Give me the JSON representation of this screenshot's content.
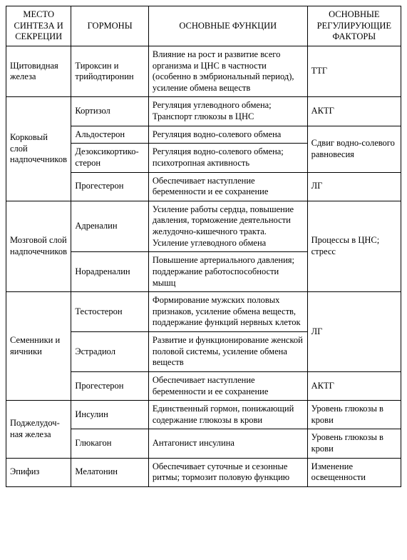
{
  "headers": {
    "c1": "МЕСТО СИНТЕЗА И СЕКРЕЦИИ",
    "c2": "ГОРМОНЫ",
    "c3": "ОСНОВНЫЕ ФУНКЦИИ",
    "c4": "ОСНОВНЫЕ РЕГУЛИРУЮЩИЕ ФАКТОРЫ"
  },
  "groups": [
    {
      "site": "Щитовидная железа",
      "rows": [
        {
          "hormone": "Тироксин и трийодтиронин",
          "func": "Влияние на рост и развитие всего организма и ЦНС в частности (особенно в эмбриональный период), усиление обмена веществ",
          "factor": "ТТГ"
        }
      ]
    },
    {
      "site": "Корковый слой надпочечни­ков",
      "rows": [
        {
          "hormone": "Кортизол",
          "func": "Регуляция углеводного обмена; Транспорт глюкозы в ЦНС",
          "factor": "АКТГ"
        },
        {
          "hormone": "Альдостерон",
          "func": "Регуляция водно-солевого обмена",
          "factor": "Сдвиг водно-солевого равновесия",
          "factor_span": 2
        },
        {
          "hormone": "Дезоксикортико­стерон",
          "func": "Регуляция водно-солевого обмена; психотропная активность"
        },
        {
          "hormone": "Прогестерон",
          "func": "Обеспечивает наступление беременности и ее сохранение",
          "factor": "ЛГ"
        }
      ]
    },
    {
      "site": "Мозговой слой надпочечни­ков",
      "rows": [
        {
          "hormone": "Адреналин",
          "func": "Усиление работы сердца, повышение давления, торможение деятельности желудочно-кишечного тракта. Усиление углеводного обмена",
          "factor": "Процессы в ЦНС; стресс",
          "factor_span": 2
        },
        {
          "hormone": "Норадреналин",
          "func": "Повышение артериального давления; поддержание работоспособности мышц"
        }
      ]
    },
    {
      "site": "Семенники и яичники",
      "rows": [
        {
          "hormone": "Тестостерон",
          "func": "Формирование мужских половых признаков, усиление обмена веществ, поддержание функций нервных клеток",
          "factor": "ЛГ",
          "factor_span": 2
        },
        {
          "hormone": "Эстрадиол",
          "func": "Развитие и функционирование женской половой системы, усиление обмена веществ"
        },
        {
          "hormone": "Прогестерон",
          "func": "Обеспечивает наступление беременности и ее сохранение",
          "factor": "АКТГ"
        }
      ]
    },
    {
      "site": "Поджелудоч­ная железа",
      "rows": [
        {
          "hormone": "Инсулин",
          "func": "Единственный гормон, понижающий содержание глюкозы в крови",
          "factor": "Уровень глюкозы в крови"
        },
        {
          "hormone": "Глюкагон",
          "func": "Антагонист инсулина",
          "factor": "Уровень глюкозы в крови"
        }
      ]
    },
    {
      "site": "Эпифиз",
      "rows": [
        {
          "hormone": "Мелатонин",
          "func": "Обеспечивает суточные и сезонные ритмы; тормозит половую функцию",
          "factor": "Изменение освещенности"
        }
      ]
    }
  ]
}
